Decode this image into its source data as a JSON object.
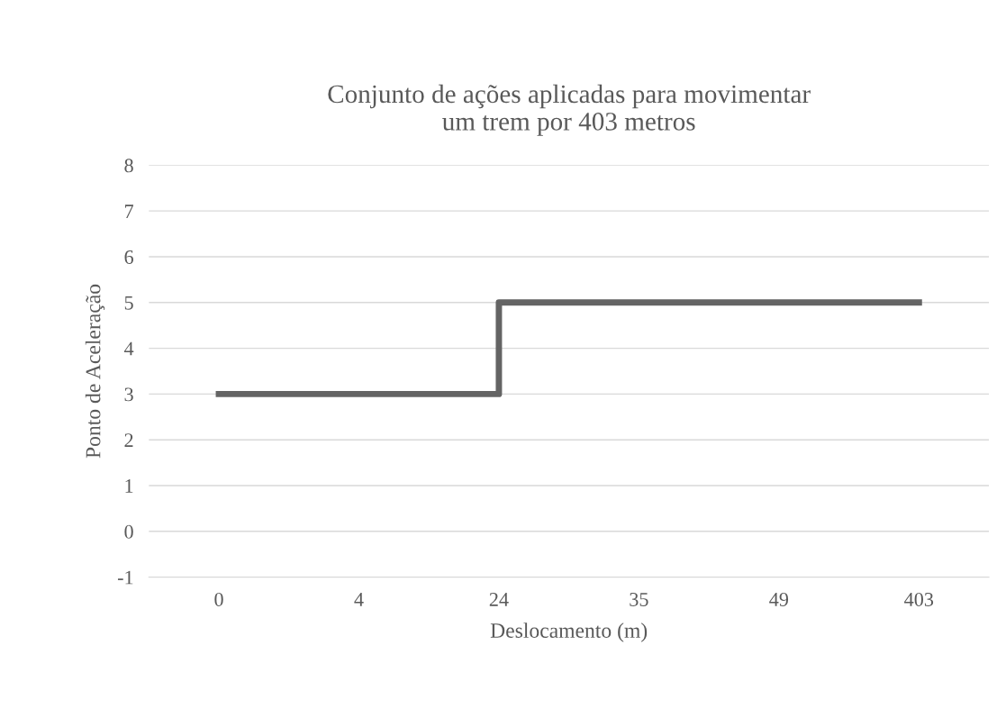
{
  "chart_data": {
    "type": "step",
    "title": "Conjunto de ações aplicadas para movimentar\num trem por 403 metros",
    "xlabel": "Deslocamento (m)",
    "ylabel": "Ponto de Aceleração",
    "categories": [
      "0",
      "4",
      "24",
      "35",
      "49",
      "403"
    ],
    "series": [
      {
        "color": "#646464",
        "values": [
          3,
          3,
          3,
          5,
          5,
          5
        ]
      }
    ],
    "ylim": [
      -1,
      8
    ],
    "yticks": [
      -1,
      0,
      1,
      2,
      3,
      4,
      5,
      6,
      7,
      8
    ],
    "grid": "y",
    "legend": false,
    "marker": "none",
    "line_style": "solid"
  }
}
